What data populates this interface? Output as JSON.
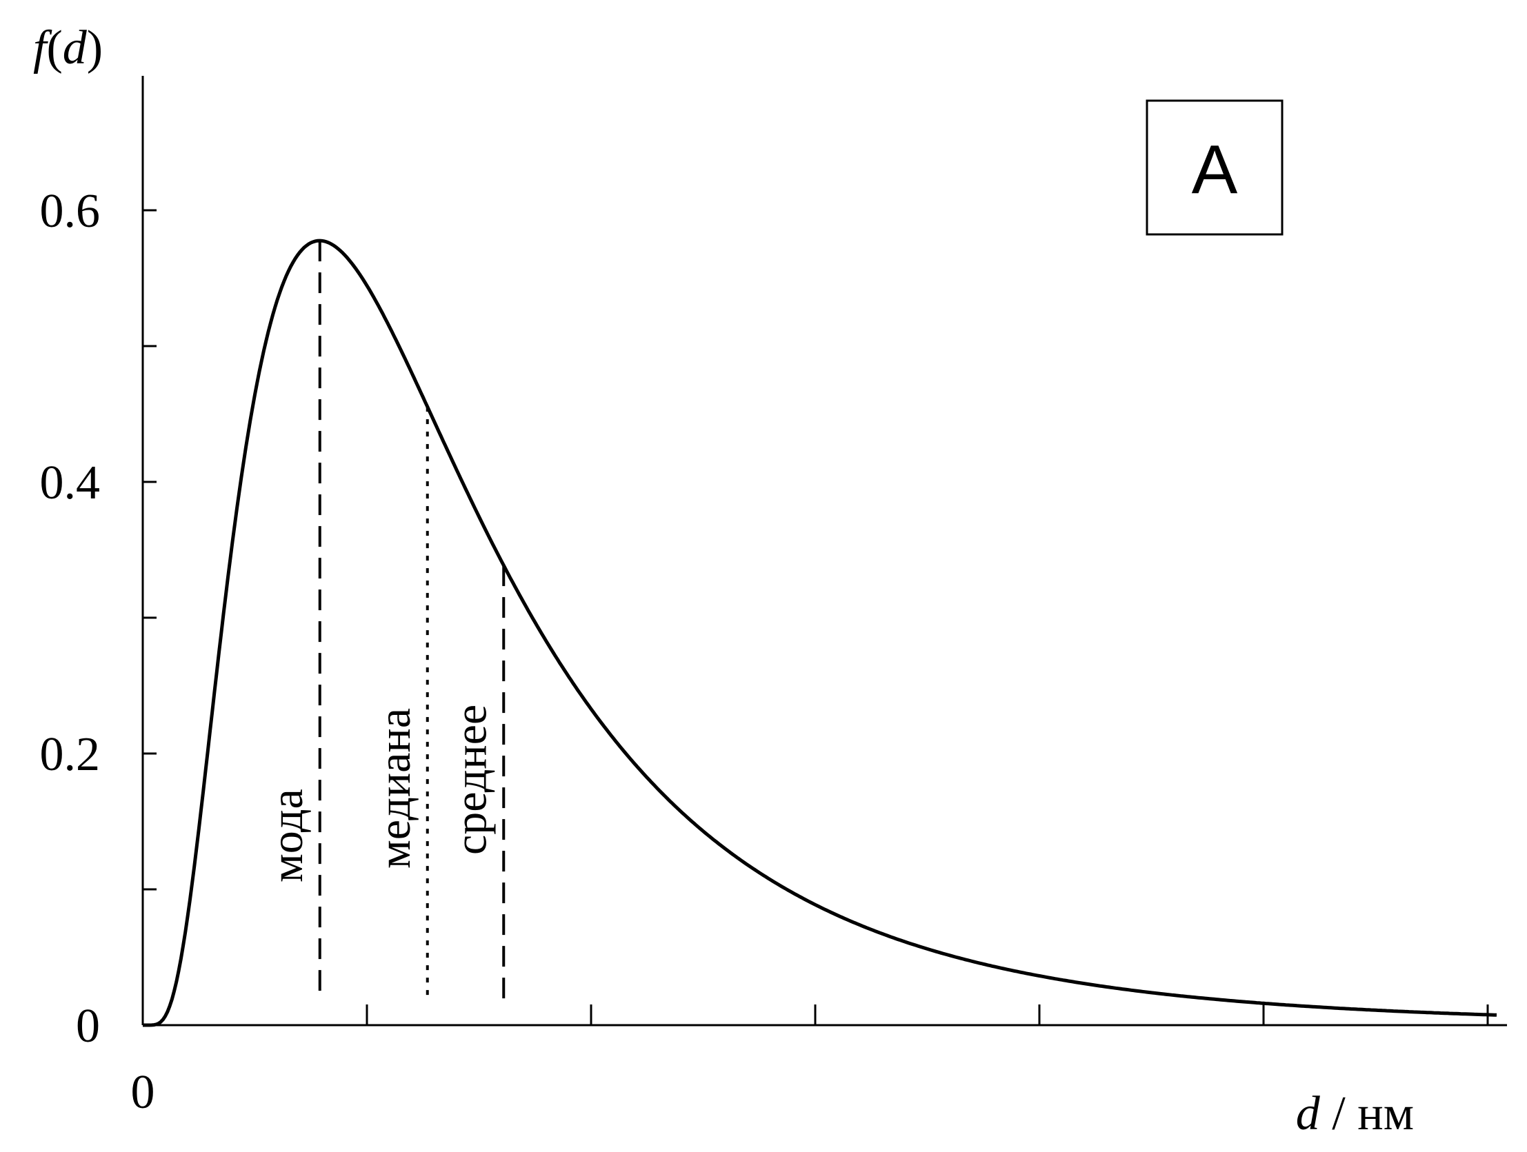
{
  "chart_data": {
    "type": "line",
    "ylabel": {
      "f": "f",
      "open": "(",
      "d": "d",
      "close": ")"
    },
    "xlabel": {
      "var": "d",
      "unit": " / нм"
    },
    "x_origin_label": "0",
    "y_ticks": [
      {
        "value": 0,
        "label": "0"
      },
      {
        "value": 0.1,
        "label": ""
      },
      {
        "value": 0.2,
        "label": "0.2"
      },
      {
        "value": 0.3,
        "label": ""
      },
      {
        "value": 0.4,
        "label": "0.4"
      },
      {
        "value": 0.5,
        "label": ""
      },
      {
        "value": 0.6,
        "label": "0.6"
      }
    ],
    "x_tick_count": 6,
    "xlim": [
      0,
      6.1
    ],
    "ylim": [
      0,
      0.7
    ],
    "panel_label": "A",
    "curve": {
      "kind": "lognormal",
      "mode": 0.79,
      "median": 1.27,
      "mean": 1.61,
      "sigma": 0.69,
      "xmax": 6.04
    },
    "markers": [
      {
        "name": "mode",
        "label": "мода",
        "x": 0.79,
        "style": "dashed"
      },
      {
        "name": "median",
        "label": "медиана",
        "x": 1.27,
        "style": "dotted"
      },
      {
        "name": "mean",
        "label": "среднее",
        "x": 1.61,
        "style": "dashed"
      }
    ],
    "grid": false,
    "legend": "none"
  }
}
